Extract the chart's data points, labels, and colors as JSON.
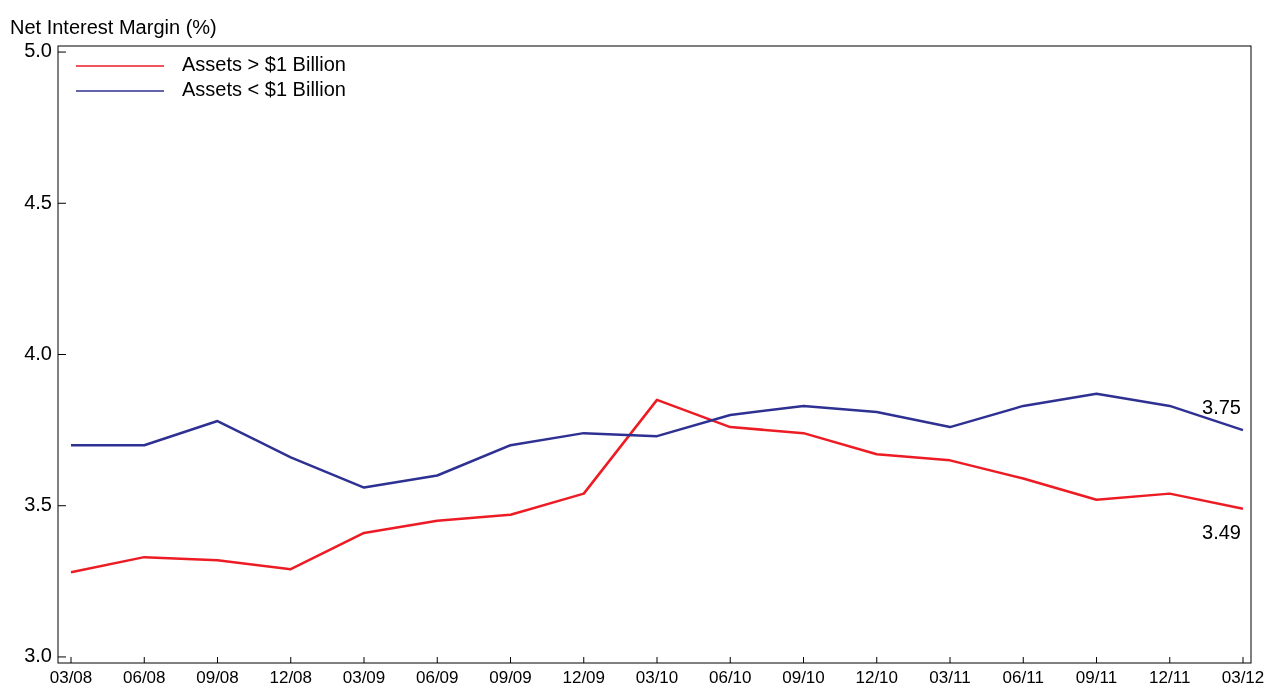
{
  "chart_data": {
    "type": "line",
    "title": "Net Interest Margin (%)",
    "categories": [
      "03/08",
      "06/08",
      "09/08",
      "12/08",
      "03/09",
      "06/09",
      "09/09",
      "12/09",
      "03/10",
      "06/10",
      "09/10",
      "12/10",
      "03/11",
      "06/11",
      "09/11",
      "12/11",
      "03/12"
    ],
    "series": [
      {
        "name": "Assets > $1 Billion",
        "color": "#ed1c24",
        "values": [
          3.28,
          3.33,
          3.32,
          3.29,
          3.41,
          3.45,
          3.47,
          3.54,
          3.85,
          3.76,
          3.74,
          3.67,
          3.65,
          3.59,
          3.52,
          3.54,
          3.49
        ]
      },
      {
        "name": "Assets < $1 Billion",
        "color": "#2e3192",
        "values": [
          3.7,
          3.7,
          3.78,
          3.66,
          3.56,
          3.6,
          3.7,
          3.74,
          3.73,
          3.8,
          3.83,
          3.81,
          3.76,
          3.83,
          3.87,
          3.83,
          3.75
        ]
      }
    ],
    "ylim": [
      2.98,
      5.02
    ],
    "yticks": [
      {
        "value": 3,
        "label": "3.0"
      },
      {
        "value": 3.5,
        "label": "3.5"
      },
      {
        "value": 4,
        "label": "4.0"
      },
      {
        "value": 4.5,
        "label": "4.5"
      },
      {
        "value": 5,
        "label": "5.0"
      }
    ],
    "annotations": [
      {
        "text": "3.75",
        "x": "03/12",
        "y": 3.75
      },
      {
        "text": "3.49",
        "x": "03/12",
        "y": 3.49
      }
    ],
    "legend": "top left",
    "grid": false,
    "marker": "none",
    "line_style": "solid"
  }
}
